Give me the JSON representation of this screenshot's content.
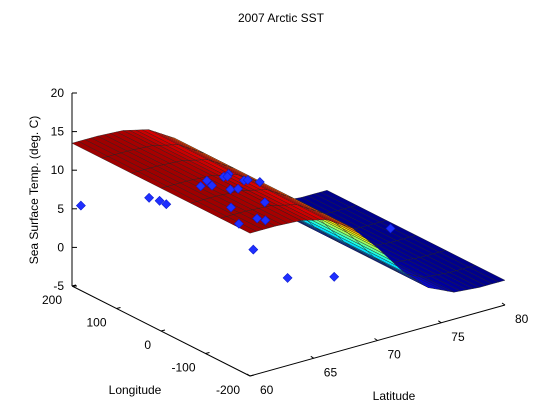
{
  "chart_data": {
    "type": "surface3d",
    "title": "2007 Arctic SST",
    "xlabel": "Longitude",
    "ylabel": "Latitude",
    "zlabel": "Sea Surface Temp. (deg. C)",
    "xlim": [
      -200,
      200
    ],
    "ylim": [
      60,
      80
    ],
    "zlim": [
      -5,
      20
    ],
    "x_ticks": [
      "-200",
      "-100",
      "0",
      "100",
      "200"
    ],
    "y_ticks": [
      "60",
      "65",
      "70",
      "75",
      "80"
    ],
    "z_ticks": [
      "-5",
      "0",
      "5",
      "10",
      "15",
      "20"
    ],
    "surface_profile": {
      "latitude": [
        60,
        62,
        64,
        66,
        68,
        70,
        72,
        74,
        76,
        78,
        80
      ],
      "sst": [
        13.5,
        13.5,
        13.3,
        12.5,
        10.5,
        7.0,
        3.0,
        0.0,
        -1.5,
        -1.8,
        -1.8
      ]
    },
    "series": [
      {
        "type": "scatter",
        "color": "#1f2fff",
        "points": [
          [
            -150,
            62,
            9
          ],
          [
            -130,
            63,
            12
          ],
          [
            -120,
            64,
            11
          ],
          [
            -100,
            62,
            13
          ],
          [
            -90,
            65,
            12
          ],
          [
            -70,
            63,
            14
          ],
          [
            -50,
            66,
            13
          ],
          [
            -30,
            65,
            12
          ],
          [
            0,
            64,
            12
          ],
          [
            20,
            66,
            12
          ],
          [
            40,
            65,
            11
          ],
          [
            60,
            67,
            10
          ],
          [
            80,
            68,
            9
          ],
          [
            100,
            70,
            7
          ],
          [
            120,
            71,
            6
          ],
          [
            140,
            68,
            6
          ],
          [
            160,
            66,
            4
          ],
          [
            170,
            65,
            5
          ],
          [
            175,
            66,
            4
          ],
          [
            -175,
            60,
            14
          ],
          [
            -170,
            64,
            5
          ],
          [
            -160,
            68,
            3
          ],
          [
            0,
            78,
            0
          ],
          [
            180,
            60,
            6
          ]
        ]
      }
    ],
    "colormap": "jet",
    "grid": false
  }
}
